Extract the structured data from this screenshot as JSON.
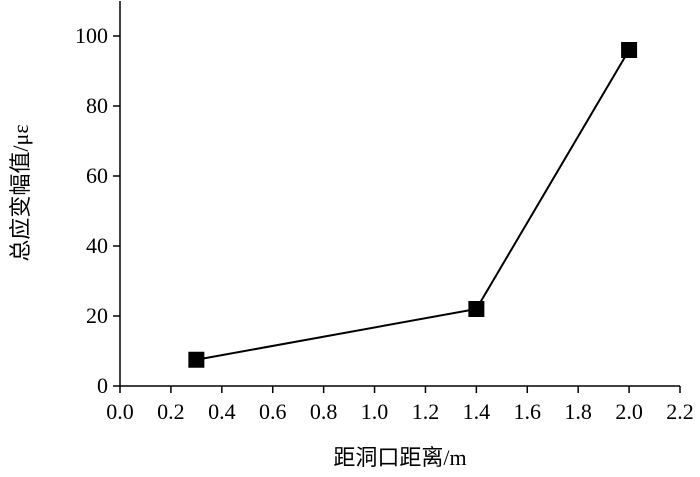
{
  "chart_data": {
    "type": "line",
    "marker": "square",
    "color": "#000000",
    "x_label": "距洞口距离/m",
    "y_label": "总应变幅值/με",
    "x": [
      0.3,
      1.4,
      2.0
    ],
    "values": [
      7.5,
      22,
      96
    ],
    "xlim": [
      0,
      2.2
    ],
    "xticks": [
      {
        "value": 0,
        "label": "0.0"
      },
      0.2,
      0.4,
      0.6,
      0.8,
      {
        "value": 1,
        "label": "1.0"
      },
      1.2,
      1.4,
      1.6,
      1.8,
      {
        "value": 2,
        "label": "2.0"
      },
      2.2
    ],
    "ylim": [
      0,
      110
    ],
    "yticks": [
      0,
      20,
      40,
      60,
      80,
      100
    ]
  }
}
